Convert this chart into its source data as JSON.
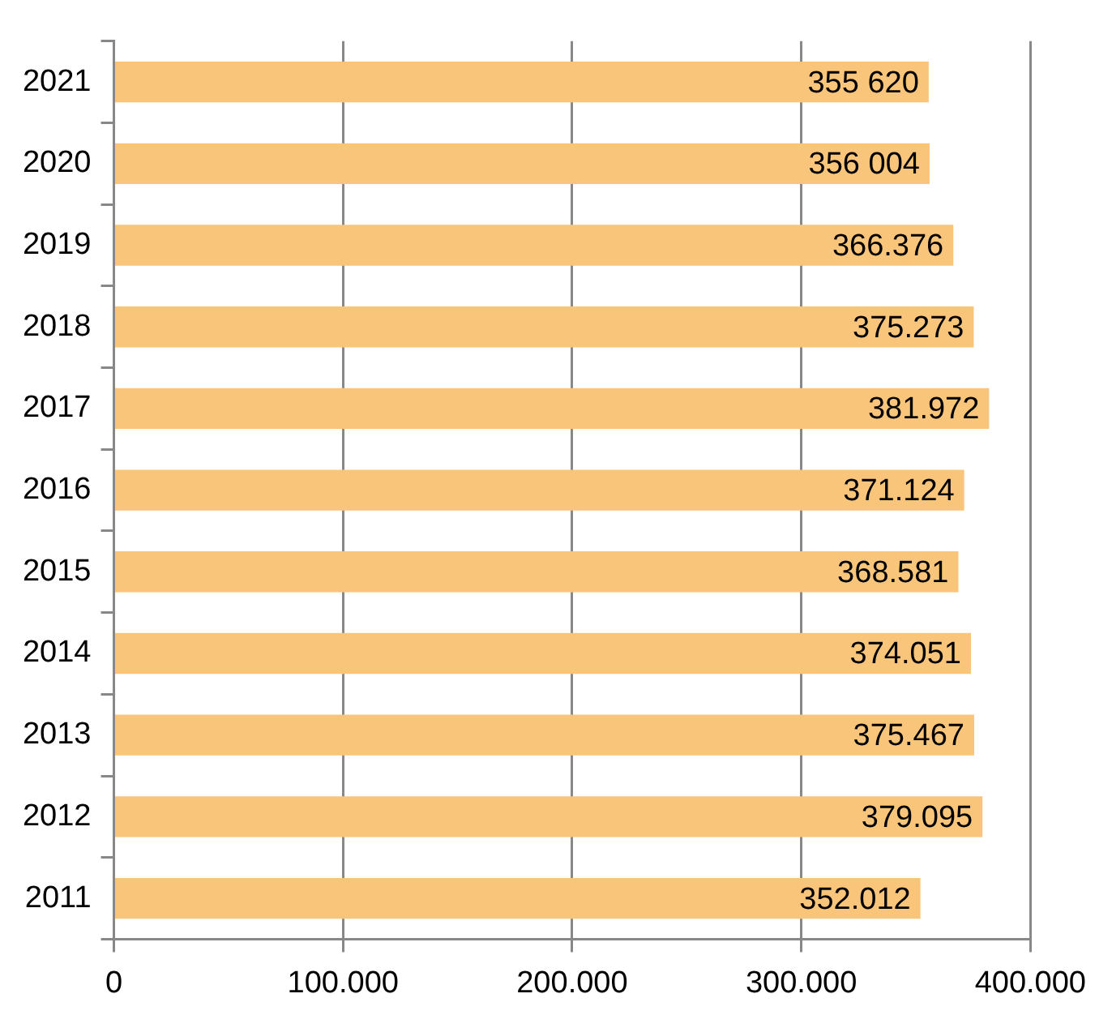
{
  "chart_data": {
    "type": "bar",
    "orientation": "horizontal",
    "categories": [
      "2021",
      "2020",
      "2019",
      "2018",
      "2017",
      "2016",
      "2015",
      "2014",
      "2013",
      "2012",
      "2011"
    ],
    "values": [
      355620,
      356004,
      366376,
      375273,
      381972,
      371124,
      368581,
      374051,
      375467,
      379095,
      352012
    ],
    "value_labels": [
      "355 620",
      "356 004",
      "366.376",
      "375.273",
      "381.972",
      "371.124",
      "368.581",
      "374.051",
      "375.467",
      "379.095",
      "352.012"
    ],
    "color": "#f9c57a",
    "xlim": [
      0,
      400000
    ],
    "xticks": [
      0,
      {
        "value": 100000,
        "label": "100.000"
      },
      {
        "value": 200000,
        "label": "200.000"
      },
      {
        "value": 300000,
        "label": "300.000"
      },
      {
        "value": 400000,
        "label": "400.000"
      }
    ],
    "grid": "x"
  }
}
